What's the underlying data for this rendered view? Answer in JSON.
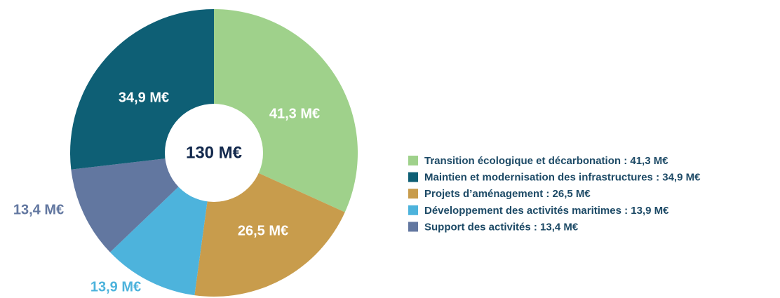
{
  "chart_data": {
    "type": "donut",
    "center_text": "130 M€",
    "categories": [
      "Transition écologique et décarbonation",
      "Projets d’aménagement",
      "Développement des activités maritimes",
      "Support des activités",
      "Maintien et modernisation des infrastructures"
    ],
    "values": [
      41.3,
      26.5,
      13.9,
      13.4,
      34.9
    ],
    "value_labels": [
      "41,3 M€",
      "26,5 M€",
      "13,9 M€",
      "13,4 M€",
      "34,9 M€"
    ],
    "colors": [
      "#9fd18b",
      "#c89c4c",
      "#4db3dc",
      "#6277a0",
      "#0e5f75"
    ],
    "legend": [
      {
        "label": "Transition écologique et décarbonation : 41,3 M€",
        "color": "#9fd18b"
      },
      {
        "label": "Maintien et modernisation des infrastructures : 34,9 M€",
        "color": "#0e5f75"
      },
      {
        "label": "Projets d’aménagement : 26,5 M€",
        "color": "#c89c4c"
      },
      {
        "label": "Développement des activités maritimes : 13,9 M€",
        "color": "#4db3dc"
      },
      {
        "label": "Support des activités : 13,4 M€",
        "color": "#6277a0"
      }
    ]
  }
}
